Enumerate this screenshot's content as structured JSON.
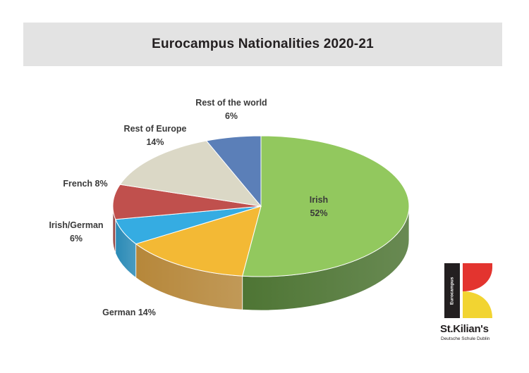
{
  "chart_data": {
    "type": "pie",
    "title": "Eurocampus Nationalities 2020-21",
    "slices": [
      {
        "name": "Irish",
        "value": 52,
        "value_label": "52%",
        "color": "#92c85e",
        "side_color": "#4e7534"
      },
      {
        "name": "German",
        "value": 14,
        "value_label": "14%",
        "color": "#f3b935",
        "side_color": "#b6873a"
      },
      {
        "name": "Irish/German",
        "value": 6,
        "value_label": "6%",
        "color": "#35ace2",
        "side_color": "#2a8ab6"
      },
      {
        "name": "French",
        "value": 8,
        "value_label": "8%",
        "color": "#c0504d",
        "side_color": "#8e3a38"
      },
      {
        "name": "Rest of Europe",
        "value": 14,
        "value_label": "14%",
        "color": "#dbd8c6",
        "side_color": "#a8a694"
      },
      {
        "name": "Rest of the world",
        "value": 6,
        "value_label": "6%",
        "color": "#5b7fb8",
        "side_color": "#3d5a87"
      }
    ]
  },
  "labels": {
    "irish": [
      "Irish",
      "52%"
    ],
    "german": "German 14%",
    "irish_german": [
      "Irish/German",
      "6%"
    ],
    "french": "French 8%",
    "rest_europe": [
      "Rest of Europe",
      "14%"
    ],
    "rest_world": [
      "Rest of the world",
      "6%"
    ]
  },
  "logo": {
    "bar_text": "Eurocampus",
    "name": "St.Kilian's",
    "subtitle": "Deutsche Schule Dublin",
    "colors": {
      "black": "#231f20",
      "red": "#e3342f",
      "yellow": "#f2d431"
    }
  }
}
